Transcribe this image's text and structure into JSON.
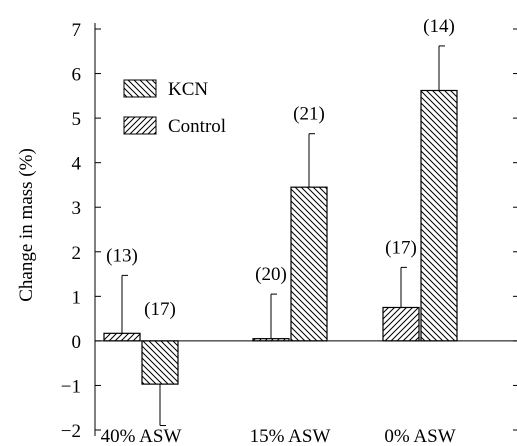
{
  "chart_data": {
    "type": "bar",
    "title": "",
    "xlabel": "",
    "ylabel": "Change in mass (%)",
    "ylim": [
      -2,
      7
    ],
    "yticks": [
      -2,
      -1,
      0,
      1,
      2,
      3,
      4,
      5,
      6,
      7
    ],
    "grid": false,
    "legend_position": "upper-left",
    "categories": [
      "40% ASW",
      "15% ASW",
      "0% ASW"
    ],
    "series": [
      {
        "name": "Control",
        "pattern": "hatch-forward",
        "values": [
          0.17,
          0.05,
          0.75
        ],
        "error_up": [
          1.3,
          1.0,
          0.9
        ],
        "n_labels": [
          "(13)",
          "(20)",
          "(17)"
        ]
      },
      {
        "name": "KCN",
        "pattern": "hatch-backward",
        "values": [
          -0.97,
          3.45,
          5.62
        ],
        "error": [
          0.93,
          1.2,
          1.0
        ],
        "n_labels": [
          "(17)",
          "(21)",
          "(14)"
        ]
      }
    ],
    "legend_order": [
      "KCN",
      "Control"
    ],
    "colors": {
      "ink": "#000000",
      "background": "#ffffff"
    }
  }
}
